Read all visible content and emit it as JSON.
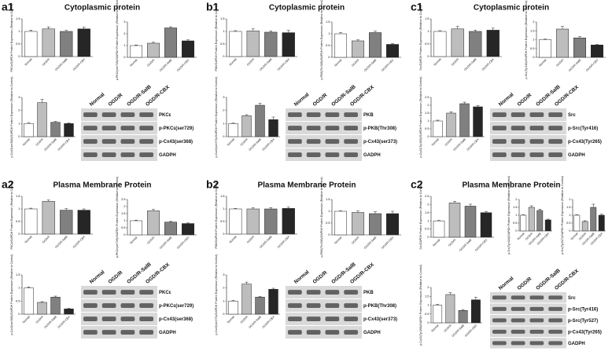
{
  "panels": [
    {
      "label": "a1",
      "title": "Cytoplasmic protein",
      "lanes": [
        "Normal",
        "OGD/R",
        "OGD/R-SalB",
        "OGD/R-CBX"
      ],
      "bands": [
        "PKCε",
        "p-PKCε(ser729)",
        "p-Cx43(ser368)",
        "GADPH"
      ]
    },
    {
      "label": "b1",
      "title": "Cytoplasmic protein",
      "lanes": [
        "Normal",
        "OGD/R",
        "OGD/R-SalB",
        "OGD/R-CBX"
      ],
      "bands": [
        "PKB",
        "p-PKB(Thr308)",
        "p-Cx43(ser373)",
        "GADPH"
      ]
    },
    {
      "label": "c1",
      "title": "Cytoplasmic protein",
      "lanes": [
        "Normal",
        "OGD/R",
        "OGD/R-SalB",
        "OGD/R-CBX"
      ],
      "bands": [
        "Src",
        "p-Src(Tyr416)",
        "p-Cx43(Tyr265)",
        "GADPH"
      ]
    },
    {
      "label": "a2",
      "title": "Plasma Membrane Protein",
      "lanes": [
        "Normal",
        "OGD/R",
        "OGD/R-SalB",
        "OGD/R-CBX"
      ],
      "bands": [
        "PKCε",
        "p-PKCε(ser729)",
        "p-Cx43(ser368)",
        "GADPH"
      ]
    },
    {
      "label": "b2",
      "title": "Plasma Membrane Protein",
      "lanes": [
        "Normal",
        "OGD/R",
        "OGD/R-SalB",
        "OGD/R-CBX"
      ],
      "bands": [
        "PKB",
        "p-PKB(Thr308)",
        "p-Cx43(ser373)",
        "GADPH"
      ]
    },
    {
      "label": "c2",
      "title": "Plasma Membrane Protein",
      "lanes": [
        "Normal",
        "OGD/R",
        "OGD/R-SalB",
        "OGD/R-CBX"
      ],
      "bands": [
        "Src",
        "p-Src(Tyr416)",
        "p-Src(Tyr527)",
        "p-Cx43(Tyr265)",
        "GADPH"
      ]
    }
  ],
  "chart_data": [
    {
      "type": "bar",
      "ylabel": "PKCε/GAPDH Protein Expression (Relative to Control)",
      "categories": [
        "Normal",
        "OGD/R",
        "OGD/R-SalB",
        "OGD/R-CBX"
      ],
      "values": [
        1,
        1.1,
        1.0,
        1.1
      ],
      "errors": [
        0.05,
        0.08,
        0.04,
        0.07
      ],
      "colors": [
        "#ffffff",
        "#bdbdbd",
        "#808080",
        "#262626"
      ],
      "ylim": [
        0,
        1.5
      ],
      "yticks": [
        0,
        0.5,
        1,
        1.5
      ]
    },
    {
      "type": "bar",
      "ylabel": "p-PKCε(ser729)/GAPDH Protein Expression (Relative to Control)",
      "categories": [
        "Normal",
        "OGD/R",
        "OGD/R-SalB",
        "OGD/R-CBX"
      ],
      "values": [
        1,
        1.2,
        2.5,
        1.4
      ],
      "errors": [
        0.05,
        0.08,
        0.1,
        0.08
      ],
      "colors": [
        "#ffffff",
        "#bdbdbd",
        "#808080",
        "#262626"
      ],
      "ylim": [
        0,
        3
      ],
      "yticks": [
        0,
        1,
        2,
        3
      ]
    },
    {
      "type": "bar",
      "ylabel": "p-Cx43(ser368)/GAPDH Protein Expression (Relative to Control)",
      "categories": [
        "Normal",
        "OGD/R",
        "OGD/R-SalB",
        "OGD/R-CBX"
      ],
      "values": [
        1,
        2.6,
        1.1,
        1.0
      ],
      "errors": [
        0.08,
        0.25,
        0.06,
        0.05
      ],
      "colors": [
        "#ffffff",
        "#bdbdbd",
        "#808080",
        "#262626"
      ],
      "ylim": [
        0,
        3
      ],
      "yticks": [
        0,
        1,
        2,
        3
      ]
    },
    {
      "type": "bar",
      "ylabel": "PKB/GAPDH Protein Expression (Relative to Control)",
      "categories": [
        "Normal",
        "OGD/R",
        "OGD/R-SalB",
        "OGD/R-CBX"
      ],
      "values": [
        1,
        1.02,
        0.97,
        0.95
      ],
      "errors": [
        0.03,
        0.08,
        0.05,
        0.09
      ],
      "colors": [
        "#ffffff",
        "#bdbdbd",
        "#808080",
        "#262626"
      ],
      "ylim": [
        0,
        1.5
      ],
      "yticks": [
        0,
        0.5,
        1,
        1.5
      ]
    },
    {
      "type": "bar",
      "ylabel": "p-PKB(Thr308)/GAPDH Protein Expression (Relative to Control)",
      "categories": [
        "Normal",
        "OGD/R",
        "OGD/R-SalB",
        "OGD/R-CBX"
      ],
      "values": [
        1,
        0.7,
        1.05,
        0.55
      ],
      "errors": [
        0.05,
        0.04,
        0.06,
        0.03
      ],
      "colors": [
        "#ffffff",
        "#bdbdbd",
        "#808080",
        "#262626"
      ],
      "ylim": [
        0,
        1.5
      ],
      "yticks": [
        0,
        0.5,
        1,
        1.5
      ]
    },
    {
      "type": "bar",
      "ylabel": "p-Cx43(ser373)/GAPDH Protein Expression (Relative to Control)",
      "categories": [
        "Normal",
        "OGD/R",
        "OGD/R-SalB",
        "OGD/R-CBX"
      ],
      "values": [
        1,
        1.6,
        2.4,
        1.3
      ],
      "errors": [
        0.05,
        0.08,
        0.15,
        0.2
      ],
      "colors": [
        "#ffffff",
        "#bdbdbd",
        "#808080",
        "#262626"
      ],
      "ylim": [
        0,
        3
      ],
      "yticks": [
        0,
        1,
        2,
        3
      ]
    },
    {
      "type": "bar",
      "ylabel": "Src/GAPDH Protein Expression (Relative to Control)",
      "categories": [
        "Normal",
        "OGD/R",
        "OGD/R-SalB",
        "OGD/R-CBX"
      ],
      "values": [
        1,
        1.1,
        1.0,
        1.05
      ],
      "errors": [
        0.03,
        0.1,
        0.05,
        0.08
      ],
      "colors": [
        "#ffffff",
        "#bdbdbd",
        "#808080",
        "#262626"
      ],
      "ylim": [
        0,
        1.5
      ],
      "yticks": [
        0,
        0.5,
        1,
        1.5
      ]
    },
    {
      "type": "bar",
      "ylabel": "p-Src(Tyr416)/GAPDH Protein Expression (Relative to Control)",
      "categories": [
        "Normal",
        "OGD/R",
        "OGD/R-SalB",
        "OGD/R-CBX"
      ],
      "values": [
        1,
        1.6,
        1.1,
        0.7
      ],
      "errors": [
        0.03,
        0.15,
        0.08,
        0.03
      ],
      "colors": [
        "#ffffff",
        "#bdbdbd",
        "#808080",
        "#262626"
      ],
      "ylim": [
        0,
        2
      ],
      "yticks": [
        0,
        0.5,
        1,
        1.5,
        2
      ]
    },
    {
      "type": "bar",
      "ylabel": "p-Cx43(Tyr265)/GAPDH Protein Expression (Relative to Control)",
      "categories": [
        "Normal",
        "OGD/R",
        "OGD/R-SalB",
        "OGD/R-CBX"
      ],
      "values": [
        1,
        1.5,
        2.1,
        1.9
      ],
      "errors": [
        0.05,
        0.08,
        0.1,
        0.08
      ],
      "colors": [
        "#ffffff",
        "#bdbdbd",
        "#808080",
        "#262626"
      ],
      "ylim": [
        0,
        2.5
      ],
      "yticks": [
        0,
        0.5,
        1,
        1.5,
        2,
        2.5
      ]
    },
    {
      "type": "bar",
      "ylabel": "PKCε/GAPDH Protein Expression (Relative to Control)",
      "categories": [
        "Normal",
        "OGD/R",
        "OGD/R-SalB",
        "OGD/R-CBX"
      ],
      "values": [
        1,
        1.3,
        0.95,
        0.95
      ],
      "errors": [
        0.03,
        0.05,
        0.06,
        0.05
      ],
      "colors": [
        "#ffffff",
        "#bdbdbd",
        "#808080",
        "#262626"
      ],
      "ylim": [
        0,
        1.5
      ],
      "yticks": [
        0,
        0.5,
        1,
        1.5
      ]
    },
    {
      "type": "bar",
      "ylabel": "p-PKCε(ser729)/GAPDH Protein Expression (Relative to Control)",
      "categories": [
        "Normal",
        "OGD/R",
        "OGD/R-SalB",
        "OGD/R-CBX"
      ],
      "values": [
        1,
        1.7,
        0.9,
        0.8
      ],
      "errors": [
        0.04,
        0.1,
        0.05,
        0.04
      ],
      "colors": [
        "#ffffff",
        "#bdbdbd",
        "#808080",
        "#262626"
      ],
      "ylim": [
        0,
        2.5
      ],
      "yticks": [
        0,
        0.5,
        1,
        1.5,
        2,
        2.5
      ]
    },
    {
      "type": "bar",
      "ylabel": "p-Cx43(ser368)/GAPDH Protein Expression (Relative to Control)",
      "categories": [
        "Normal",
        "OGD/R",
        "OGD/R-SalB",
        "OGD/R-CBX"
      ],
      "values": [
        1,
        0.45,
        0.65,
        0.2
      ],
      "errors": [
        0.04,
        0.03,
        0.04,
        0.02
      ],
      "colors": [
        "#ffffff",
        "#bdbdbd",
        "#808080",
        "#262626"
      ],
      "ylim": [
        0,
        1.5
      ],
      "yticks": [
        0,
        0.5,
        1,
        1.5
      ]
    },
    {
      "type": "bar",
      "ylabel": "PKB/GAPDH Protein Expression (Relative to Control)",
      "categories": [
        "Normal",
        "OGD/R",
        "OGD/R-SalB",
        "OGD/R-CBX"
      ],
      "values": [
        1,
        1.0,
        1.0,
        1.02
      ],
      "errors": [
        0.02,
        0.04,
        0.05,
        0.05
      ],
      "colors": [
        "#ffffff",
        "#bdbdbd",
        "#808080",
        "#262626"
      ],
      "ylim": [
        0,
        1.5
      ],
      "yticks": [
        0,
        0.5,
        1,
        1.5
      ]
    },
    {
      "type": "bar",
      "ylabel": "p-PKB(Thr308)/GAPDH Protein Expression (Relative to Control)",
      "categories": [
        "Normal",
        "OGD/R",
        "OGD/R-SalB",
        "OGD/R-CBX"
      ],
      "values": [
        1,
        0.95,
        0.9,
        0.9
      ],
      "errors": [
        0.02,
        0.06,
        0.08,
        0.1
      ],
      "colors": [
        "#ffffff",
        "#bdbdbd",
        "#808080",
        "#262626"
      ],
      "ylim": [
        0,
        1.5
      ],
      "yticks": [
        0,
        0.5,
        1,
        1.5
      ]
    },
    {
      "type": "bar",
      "ylabel": "p-Cx43(ser373)/GAPDH Protein Expression (Relative to Control)",
      "categories": [
        "Normal",
        "OGD/R",
        "OGD/R-SalB",
        "OGD/R-CBX"
      ],
      "values": [
        1,
        2.3,
        1.3,
        1.9
      ],
      "errors": [
        0.05,
        0.15,
        0.05,
        0.08
      ],
      "colors": [
        "#ffffff",
        "#bdbdbd",
        "#808080",
        "#262626"
      ],
      "ylim": [
        0,
        3
      ],
      "yticks": [
        0,
        1,
        2,
        3
      ]
    },
    {
      "type": "bar",
      "ylabel": "Src/GAPDH Protein Expression (Relative to Control)",
      "categories": [
        "Normal",
        "OGD/R",
        "OGD/R-SalB",
        "OGD/R-CBX"
      ],
      "values": [
        1,
        2.1,
        1.9,
        1.5
      ],
      "errors": [
        0.03,
        0.1,
        0.12,
        0.06
      ],
      "colors": [
        "#ffffff",
        "#bdbdbd",
        "#808080",
        "#262626"
      ],
      "ylim": [
        0,
        2.5
      ],
      "yticks": [
        0,
        0.5,
        1,
        1.5,
        2,
        2.5
      ]
    },
    {
      "type": "bar",
      "ylabel": "p-Src(Tyr416)/GAPDH Protein Expression (Relative to Control)",
      "categories": [
        "Normal",
        "OGD/R",
        "OGD/R-SalB",
        "OGD/R-CBX"
      ],
      "values": [
        1,
        1.5,
        1.3,
        0.7
      ],
      "errors": [
        0.03,
        0.1,
        0.08,
        0.05
      ],
      "colors": [
        "#ffffff",
        "#bdbdbd",
        "#808080",
        "#262626"
      ],
      "ylim": [
        0,
        2
      ],
      "yticks": [
        0,
        0.5,
        1,
        1.5,
        2
      ]
    },
    {
      "type": "bar",
      "ylabel": "p-Src(Tyr527)/GAPDH Protein Expression (Relative to Control)",
      "categories": [
        "Normal",
        "OGD/R",
        "OGD/R-SalB",
        "OGD/R-CBX"
      ],
      "values": [
        1,
        0.6,
        1.5,
        1.0
      ],
      "errors": [
        0.03,
        0.05,
        0.2,
        0.06
      ],
      "colors": [
        "#ffffff",
        "#bdbdbd",
        "#808080",
        "#262626"
      ],
      "ylim": [
        0,
        2
      ],
      "yticks": [
        0,
        0.5,
        1,
        1.5,
        2
      ]
    },
    {
      "type": "bar",
      "ylabel": "p-Cx43(Tyr265)/GAPDH Protein Expression (Relative to Control)",
      "categories": [
        "Normal",
        "OGD/R",
        "OGD/R-SalB",
        "OGD/R-CBX"
      ],
      "values": [
        1,
        1.6,
        0.7,
        1.3
      ],
      "errors": [
        0.04,
        0.1,
        0.05,
        0.15
      ],
      "colors": [
        "#ffffff",
        "#bdbdbd",
        "#808080",
        "#262626"
      ],
      "ylim": [
        0,
        2
      ],
      "yticks": [
        0,
        0.5,
        1,
        1.5,
        2
      ]
    }
  ]
}
